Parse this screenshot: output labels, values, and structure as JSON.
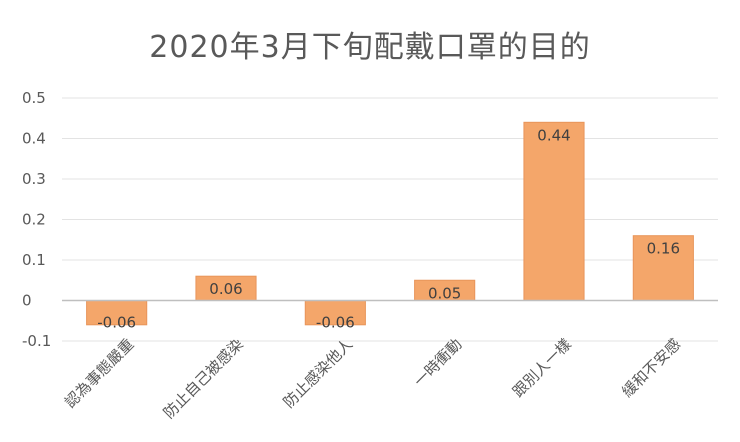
{
  "chart_data": {
    "type": "bar",
    "title": "2020年3月下旬配戴口罩的目的",
    "categories": [
      "認為事態嚴重",
      "防止自己被感染",
      "防止感染他人",
      "一時衝動",
      "跟別人一樣",
      "緩和不安感"
    ],
    "values": [
      -0.06,
      0.06,
      -0.06,
      0.05,
      0.44,
      0.16
    ],
    "data_labels": [
      "-0.06",
      "0.06",
      "-0.06",
      "0.05",
      "0.44",
      "0.16"
    ],
    "y_ticks": [
      "-0.1",
      "0",
      "0.1",
      "0.2",
      "0.3",
      "0.4",
      "0.5"
    ],
    "ylim": [
      -0.1,
      0.5
    ],
    "grid": true,
    "bar_color": "#F4A66A",
    "bar_stroke": "#E8955A",
    "grid_color": "#E3E3E3",
    "axis_color": "#BFBFBF"
  }
}
